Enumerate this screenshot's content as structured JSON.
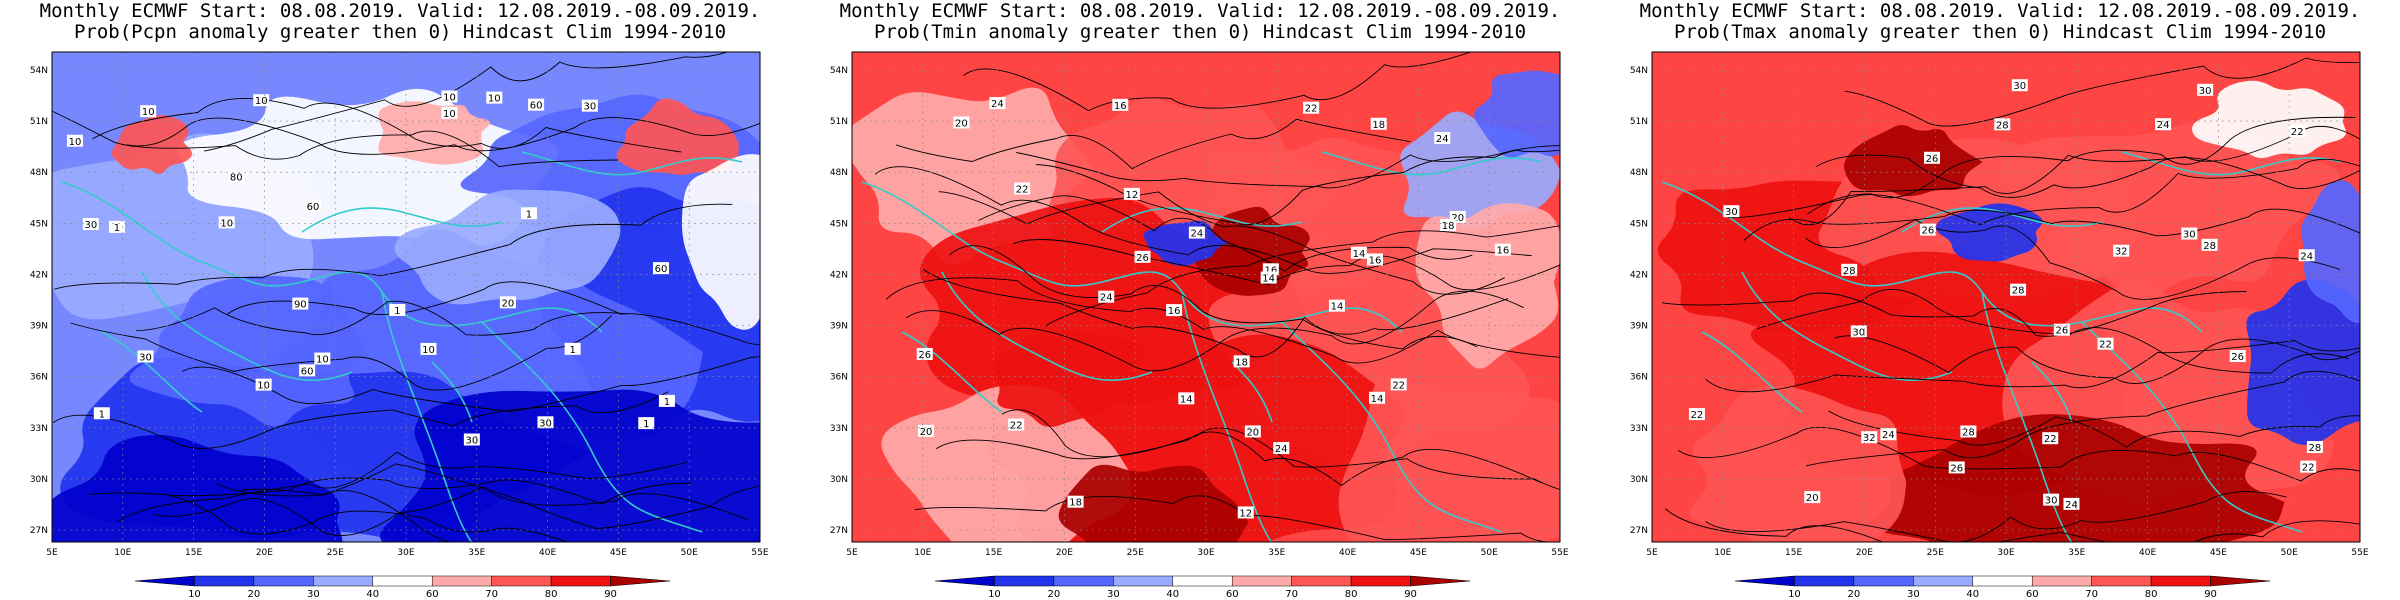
{
  "panels": [
    {
      "title_line1": "Monthly ECMWF Start: 08.08.2019. Valid: 12.08.2019.-08.09.2019.",
      "title_line2": "Prob(Pcpn anomaly greater then 0) Hindcast Clim 1994-2010",
      "variable": "precipitation",
      "contour_labels": [
        "60",
        "90",
        "60",
        "80",
        "30",
        "30",
        "10",
        "10",
        "10",
        "10",
        "60",
        "30",
        "1",
        "10",
        "10",
        "10",
        "1",
        "10",
        "30",
        "20",
        "1",
        "60",
        "30",
        "10",
        "1",
        "1",
        "1",
        "1",
        "10"
      ]
    },
    {
      "title_line1": "Monthly ECMWF Start: 08.08.2019. Valid: 12.08.2019.-08.09.2019.",
      "title_line2": "Prob(Tmin anomaly greater then 0) Hindcast Clim 1994-2010",
      "variable": "minimum temperature",
      "contour_labels": [
        "14",
        "12",
        "14",
        "16",
        "12",
        "14",
        "16",
        "14",
        "14",
        "16",
        "18",
        "16",
        "20",
        "20",
        "22",
        "24",
        "18",
        "22",
        "24",
        "16",
        "18",
        "20",
        "22",
        "26",
        "24",
        "22",
        "24",
        "18",
        "20",
        "26",
        "24"
      ]
    },
    {
      "title_line1": "Monthly ECMWF Start: 08.08.2019. Valid: 12.08.2019.-08.09.2019.",
      "title_line2": "Prob(Tmax anomaly greater then 0) Hindcast Clim 1994-2010",
      "variable": "maximum temperature",
      "contour_labels": [
        "20",
        "22",
        "24",
        "22",
        "26",
        "24",
        "22",
        "28",
        "26",
        "24",
        "22",
        "28",
        "30",
        "28",
        "26",
        "30",
        "32",
        "28",
        "30",
        "30",
        "28",
        "26",
        "30",
        "32",
        "30",
        "28",
        "24",
        "22",
        "26"
      ]
    }
  ],
  "lat_labels": [
    "54N",
    "51N",
    "48N",
    "45N",
    "42N",
    "39N",
    "36N",
    "33N",
    "30N",
    "27N"
  ],
  "lon_labels": [
    "5E",
    "10E",
    "15E",
    "20E",
    "25E",
    "30E",
    "35E",
    "40E",
    "45E",
    "50E",
    "55E"
  ],
  "colorbar": {
    "ticks": [
      "10",
      "20",
      "30",
      "40",
      "60",
      "70",
      "80",
      "90"
    ],
    "colors": [
      "#0000cc",
      "#2233ee",
      "#5566ff",
      "#99aaff",
      "#ffffff",
      "#ffaaaa",
      "#ff5555",
      "#ee1111",
      "#aa0000"
    ]
  }
}
